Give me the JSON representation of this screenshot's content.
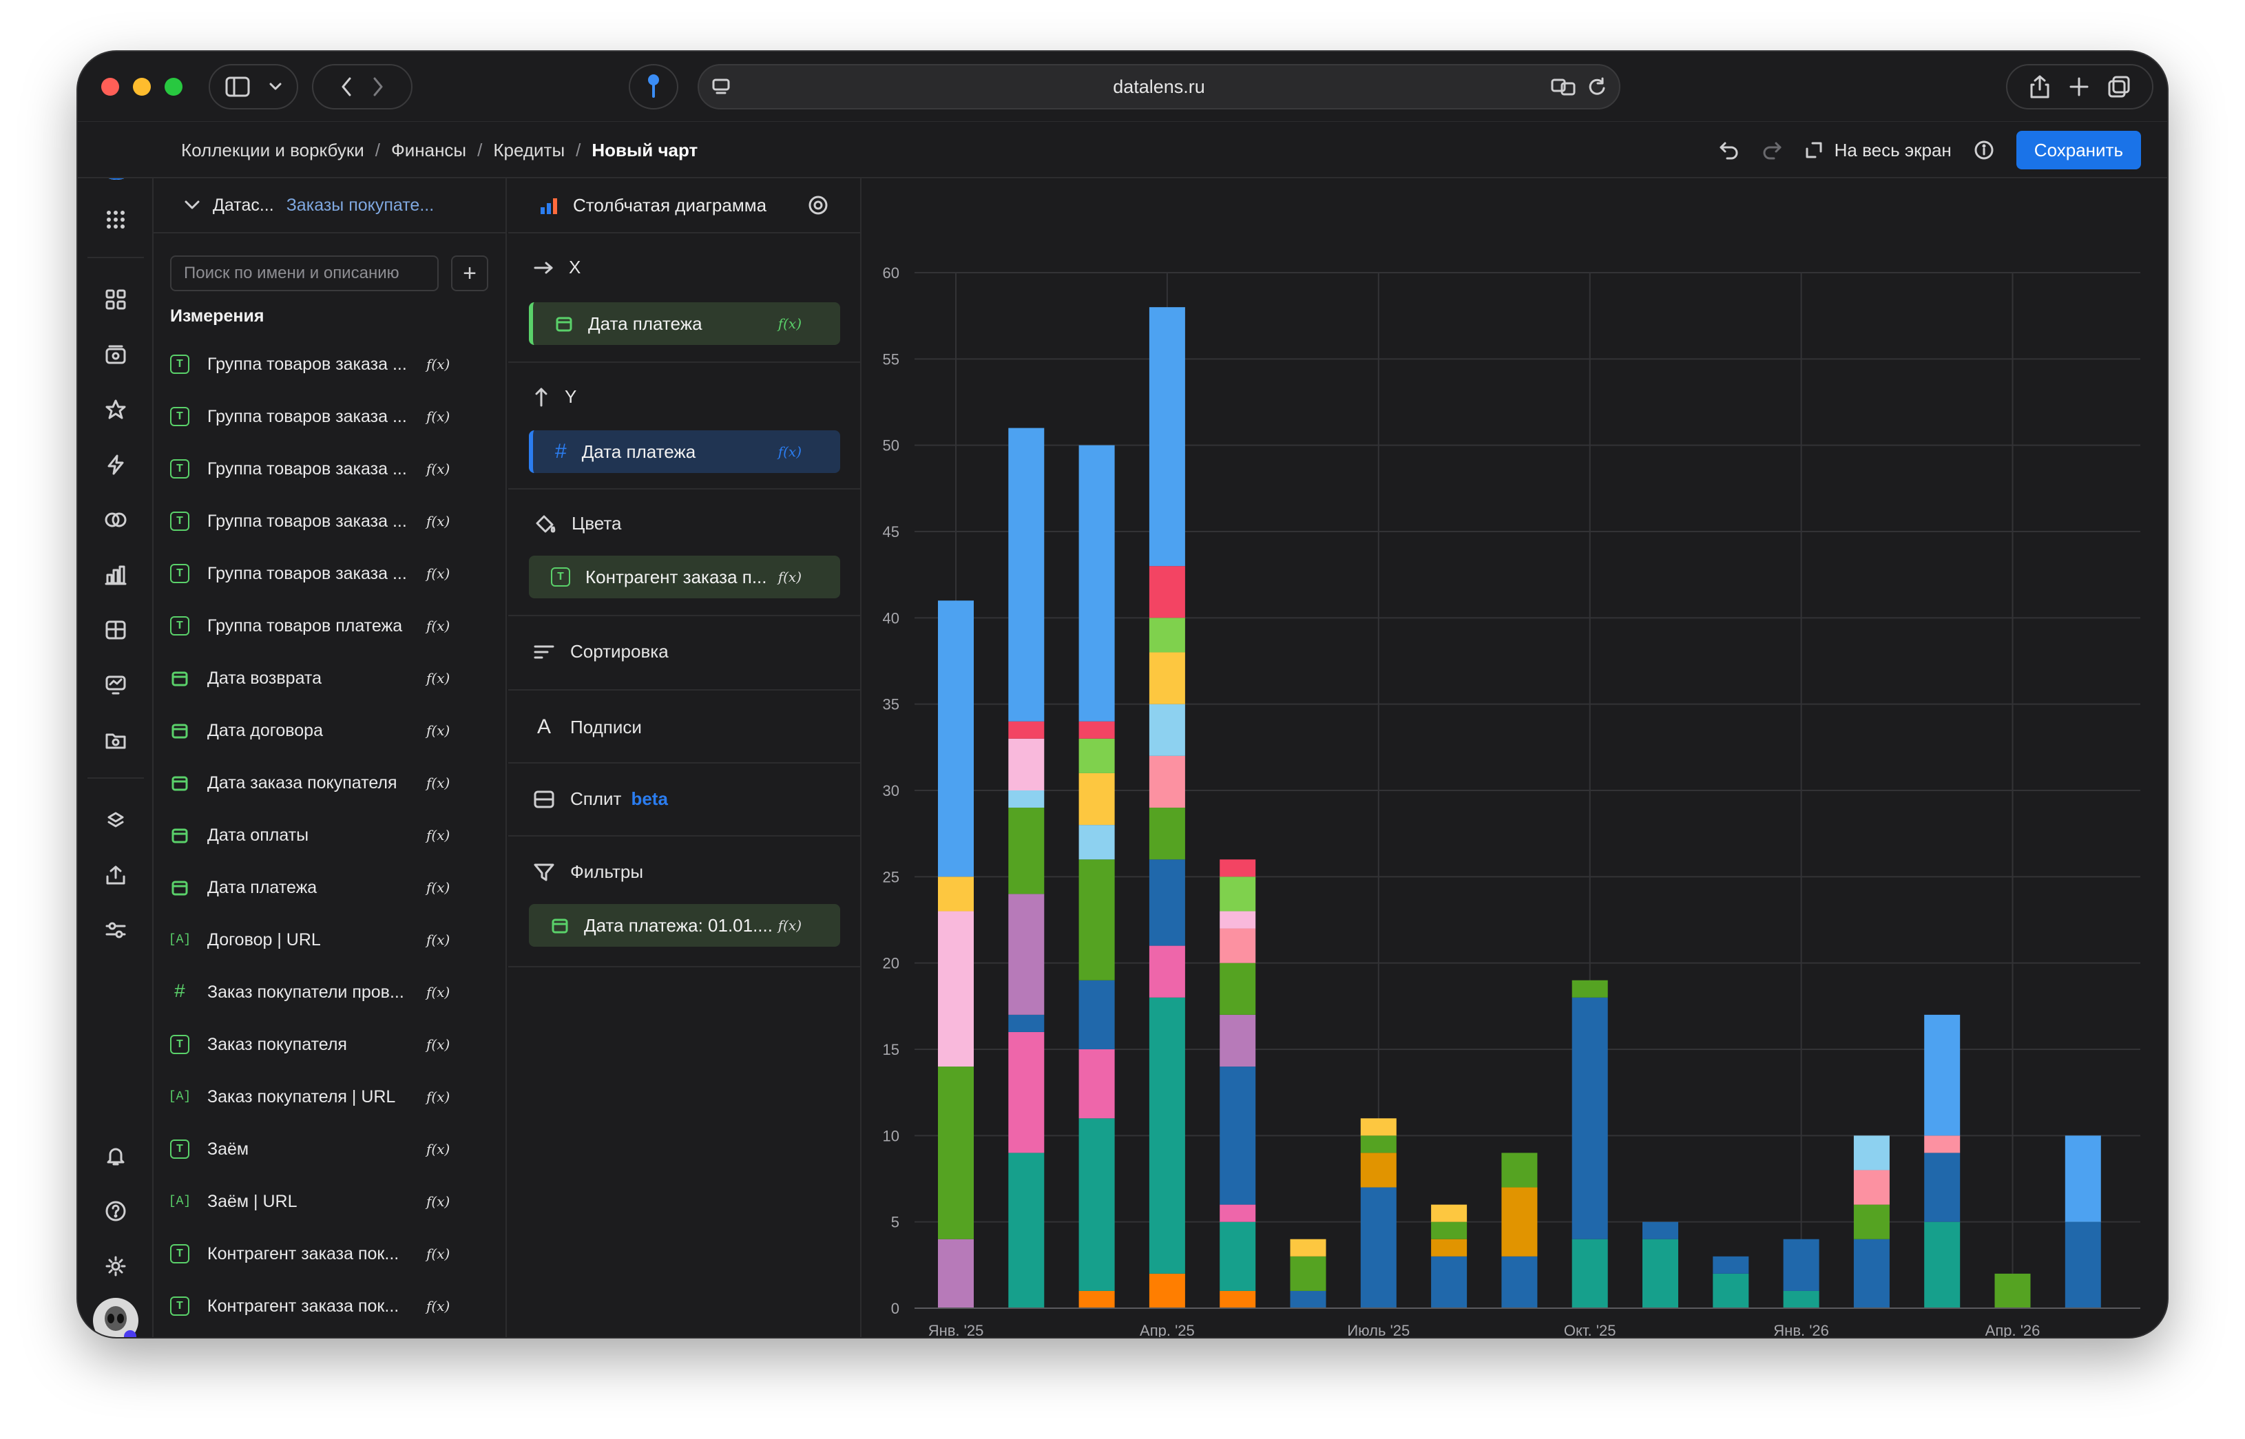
{
  "browser": {
    "url": "datalens.ru"
  },
  "breadcrumbs": [
    "Коллекции и воркбуки",
    "Финансы",
    "Кредиты",
    "Новый чарт"
  ],
  "header": {
    "fullscreen_label": "На весь экран",
    "save_label": "Сохранить"
  },
  "dataset": {
    "label": "Датас...",
    "name": "Заказы покупате...",
    "search_placeholder": "Поиск по имени и описанию",
    "section_title": "Измерения",
    "fields": [
      {
        "type": "T",
        "name": "Группа товаров заказа ..."
      },
      {
        "type": "T",
        "name": "Группа товаров заказа ..."
      },
      {
        "type": "T",
        "name": "Группа товаров заказа ..."
      },
      {
        "type": "T",
        "name": "Группа товаров заказа ..."
      },
      {
        "type": "T",
        "name": "Группа товаров заказа ..."
      },
      {
        "type": "T",
        "name": "Группа товаров платежа"
      },
      {
        "type": "date",
        "name": "Дата возврата"
      },
      {
        "type": "date",
        "name": "Дата договора"
      },
      {
        "type": "date",
        "name": "Дата заказа покупателя"
      },
      {
        "type": "date",
        "name": "Дата оплаты"
      },
      {
        "type": "date",
        "name": "Дата платежа"
      },
      {
        "type": "A",
        "name": "Договор | URL"
      },
      {
        "type": "#",
        "name": "Заказ покупатели пров..."
      },
      {
        "type": "T",
        "name": "Заказ покупателя"
      },
      {
        "type": "A",
        "name": "Заказ покупателя | URL"
      },
      {
        "type": "T",
        "name": "Заём"
      },
      {
        "type": "A",
        "name": "Заём | URL"
      },
      {
        "type": "T",
        "name": "Контрагент заказа пок..."
      },
      {
        "type": "T",
        "name": "Контрагент заказа пок..."
      }
    ],
    "fx_label": "f(x)"
  },
  "wizard": {
    "chart_type": "Столбчатая диаграмма",
    "x_label": "X",
    "x_field": "Дата платежа",
    "y_label": "Y",
    "y_field": "Дата платежа",
    "colors_label": "Цвета",
    "colors_field": "Контрагент заказа п...",
    "sort_label": "Сортировка",
    "labels_label": "Подписи",
    "split_label": "Сплит",
    "split_badge": "beta",
    "filters_label": "Фильтры",
    "filters_field": "Дата платежа: 01.01....",
    "fx_label": "f(x)"
  },
  "chart_data": {
    "type": "bar",
    "stacked": true,
    "ylim": [
      0,
      60
    ],
    "yticks": [
      0,
      5,
      10,
      15,
      20,
      25,
      30,
      35,
      40,
      45,
      50,
      55,
      60
    ],
    "grid": true,
    "xtick_labels": [
      {
        "label": "Янв. '25",
        "index": 0
      },
      {
        "label": "Апр. '25",
        "index": 3
      },
      {
        "label": "Июль '25",
        "index": 6
      },
      {
        "label": "Окт. '25",
        "index": 9
      },
      {
        "label": "Янв. '26",
        "index": 12
      },
      {
        "label": "Апр. '26",
        "index": 15
      }
    ],
    "categories": [
      "2025-01",
      "2025-02",
      "2025-03",
      "2025-04",
      "2025-05",
      "2025-06",
      "2025-07",
      "2025-08",
      "2025-09",
      "2025-10",
      "2025-11",
      "2025-12",
      "2026-01",
      "2026-02",
      "2026-03",
      "2026-04",
      "2026-05"
    ],
    "stacks": [
      [
        {
          "v": 4,
          "c": "#b77ab9"
        },
        {
          "v": 10,
          "c": "#55a322"
        },
        {
          "v": 9,
          "c": "#f9b9dc"
        },
        {
          "v": 2,
          "c": "#fdc740"
        },
        {
          "v": 16,
          "c": "#4da2f1"
        }
      ],
      [
        {
          "v": 9,
          "c": "#16a08c"
        },
        {
          "v": 7,
          "c": "#ee66aa"
        },
        {
          "v": 1,
          "c": "#2068ab"
        },
        {
          "v": 7,
          "c": "#b77ab9"
        },
        {
          "v": 5,
          "c": "#55a322"
        },
        {
          "v": 1,
          "c": "#8dd1f0"
        },
        {
          "v": 3,
          "c": "#f9b9dc"
        },
        {
          "v": 1,
          "c": "#f34463"
        },
        {
          "v": 17,
          "c": "#4da2f1"
        }
      ],
      [
        {
          "v": 1,
          "c": "#ff7e00"
        },
        {
          "v": 10,
          "c": "#16a08c"
        },
        {
          "v": 4,
          "c": "#ee66aa"
        },
        {
          "v": 4,
          "c": "#2068ab"
        },
        {
          "v": 7,
          "c": "#55a322"
        },
        {
          "v": 2,
          "c": "#8dd1f0"
        },
        {
          "v": 3,
          "c": "#fdc740"
        },
        {
          "v": 2,
          "c": "#7fd14d"
        },
        {
          "v": 1,
          "c": "#f34463"
        },
        {
          "v": 16,
          "c": "#4da2f1"
        }
      ],
      [
        {
          "v": 2,
          "c": "#ff7e00"
        },
        {
          "v": 16,
          "c": "#16a08c"
        },
        {
          "v": 3,
          "c": "#ee66aa"
        },
        {
          "v": 5,
          "c": "#2068ab"
        },
        {
          "v": 3,
          "c": "#55a322"
        },
        {
          "v": 3,
          "c": "#fc91a1"
        },
        {
          "v": 3,
          "c": "#8dd1f0"
        },
        {
          "v": 3,
          "c": "#fdc740"
        },
        {
          "v": 2,
          "c": "#7fd14d"
        },
        {
          "v": 3,
          "c": "#f34463"
        },
        {
          "v": 15,
          "c": "#4da2f1"
        }
      ],
      [
        {
          "v": 1,
          "c": "#ff7e00"
        },
        {
          "v": 4,
          "c": "#16a08c"
        },
        {
          "v": 1,
          "c": "#ee66aa"
        },
        {
          "v": 8,
          "c": "#2068ab"
        },
        {
          "v": 3,
          "c": "#b77ab9"
        },
        {
          "v": 3,
          "c": "#55a322"
        },
        {
          "v": 2,
          "c": "#fc91a1"
        },
        {
          "v": 1,
          "c": "#f9b9dc"
        },
        {
          "v": 2,
          "c": "#7fd14d"
        },
        {
          "v": 1,
          "c": "#f34463"
        }
      ],
      [
        {
          "v": 1,
          "c": "#2068ab"
        },
        {
          "v": 2,
          "c": "#55a322"
        },
        {
          "v": 1,
          "c": "#fdc740"
        }
      ],
      [
        {
          "v": 7,
          "c": "#2068ab"
        },
        {
          "v": 2,
          "c": "#e19400"
        },
        {
          "v": 1,
          "c": "#55a322"
        },
        {
          "v": 1,
          "c": "#fdc740"
        }
      ],
      [
        {
          "v": 3,
          "c": "#2068ab"
        },
        {
          "v": 1,
          "c": "#e19400"
        },
        {
          "v": 1,
          "c": "#55a322"
        },
        {
          "v": 1,
          "c": "#fdc740"
        }
      ],
      [
        {
          "v": 3,
          "c": "#2068ab"
        },
        {
          "v": 4,
          "c": "#e19400"
        },
        {
          "v": 2,
          "c": "#55a322"
        }
      ],
      [
        {
          "v": 4,
          "c": "#16a08c"
        },
        {
          "v": 14,
          "c": "#2068ab"
        },
        {
          "v": 1,
          "c": "#55a322"
        }
      ],
      [
        {
          "v": 4,
          "c": "#16a08c"
        },
        {
          "v": 1,
          "c": "#2068ab"
        }
      ],
      [
        {
          "v": 2,
          "c": "#16a08c"
        },
        {
          "v": 1,
          "c": "#2068ab"
        }
      ],
      [
        {
          "v": 1,
          "c": "#16a08c"
        },
        {
          "v": 3,
          "c": "#2068ab"
        }
      ],
      [
        {
          "v": 4,
          "c": "#2068ab"
        },
        {
          "v": 2,
          "c": "#55a322"
        },
        {
          "v": 2,
          "c": "#fc91a1"
        },
        {
          "v": 2,
          "c": "#8dd1f0"
        }
      ],
      [
        {
          "v": 5,
          "c": "#16a08c"
        },
        {
          "v": 4,
          "c": "#2068ab"
        },
        {
          "v": 1,
          "c": "#fc91a1"
        },
        {
          "v": 7,
          "c": "#4da2f1"
        }
      ],
      [
        {
          "v": 2,
          "c": "#55a322"
        }
      ],
      [
        {
          "v": 5,
          "c": "#2068ab"
        },
        {
          "v": 5,
          "c": "#4da2f1"
        }
      ]
    ]
  }
}
